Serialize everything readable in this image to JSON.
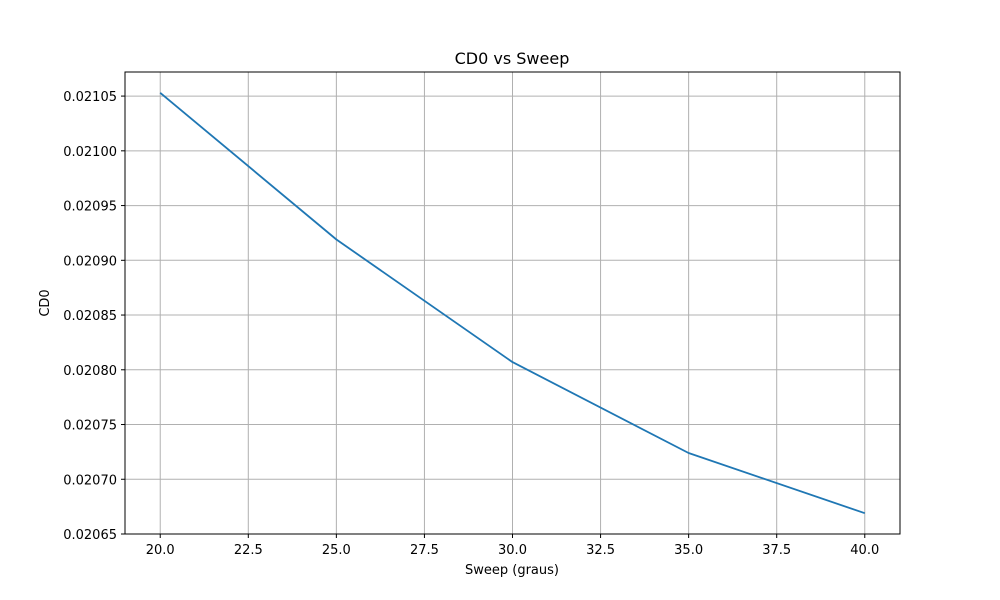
{
  "chart_data": {
    "type": "line",
    "title": "CD0 vs Sweep",
    "xlabel": "Sweep (graus)",
    "ylabel": "CD0",
    "grid": true,
    "xlim": [
      19,
      41
    ],
    "ylim": [
      0.02065,
      0.021072
    ],
    "xticks": [
      20.0,
      22.5,
      25.0,
      27.5,
      30.0,
      32.5,
      35.0,
      37.5,
      40.0
    ],
    "xtick_labels": [
      "20.0",
      "22.5",
      "25.0",
      "27.5",
      "30.0",
      "32.5",
      "35.0",
      "37.5",
      "40.0"
    ],
    "yticks": [
      0.02065,
      0.0207,
      0.02075,
      0.0208,
      0.02085,
      0.0209,
      0.02095,
      0.021,
      0.02105
    ],
    "ytick_labels": [
      "0.02065",
      "0.02070",
      "0.02075",
      "0.02080",
      "0.02085",
      "0.02090",
      "0.02095",
      "0.02100",
      "0.02105"
    ],
    "series": [
      {
        "color": "#1f77b4",
        "x": [
          20,
          25,
          30,
          35,
          40
        ],
        "y": [
          0.021053,
          0.020919,
          0.020807,
          0.020724,
          0.020669
        ]
      }
    ]
  }
}
